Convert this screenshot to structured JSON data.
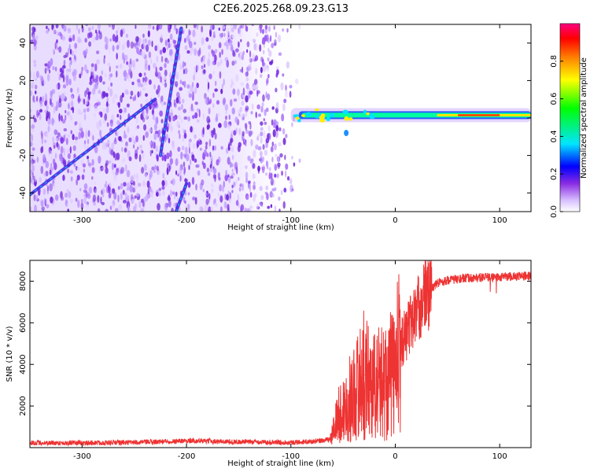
{
  "title": "C2E6.2025.268.09.23.G13",
  "chart_data": [
    {
      "type": "heatmap",
      "xlabel": "Height of straight line (km)",
      "ylabel": "Frequency (Hz)",
      "xlim": [
        -350,
        130
      ],
      "ylim": [
        -50,
        50
      ],
      "x_ticks": [
        -300,
        -200,
        -100,
        0,
        100
      ],
      "y_ticks": [
        -40,
        -20,
        0,
        20,
        40
      ],
      "colorbar": {
        "label": "Normalized spectral amplitude",
        "range": [
          0,
          1
        ],
        "ticks": [
          0.0,
          0.2,
          0.4,
          0.6,
          0.8
        ],
        "colormap": [
          "#ffffff",
          "#d8bfff",
          "#8a2be2",
          "#0000ff",
          "#00e5ff",
          "#00ff00",
          "#ffff00",
          "#ff8000",
          "#ff0000",
          "#ff0080"
        ]
      },
      "noise_region_x": [
        -350,
        -90
      ],
      "signal_band": {
        "x": [
          -100,
          130
        ],
        "frequency": 1.5
      },
      "streaks": [
        {
          "x": [
            -350,
            -230
          ],
          "y": [
            -41,
            10
          ]
        },
        {
          "x": [
            -225,
            -205
          ],
          "y": [
            -20,
            48
          ]
        },
        {
          "x": [
            -210,
            -200
          ],
          "y": [
            -50,
            -35
          ]
        }
      ],
      "grid": false
    },
    {
      "type": "line",
      "xlabel": "Height of straight line (km)",
      "ylabel": "SNR (10 * v/v)",
      "xlim": [
        -350,
        130
      ],
      "ylim": [
        0,
        9000
      ],
      "x_ticks": [
        -300,
        -200,
        -100,
        0,
        100
      ],
      "y_ticks": [
        2000,
        4000,
        6000,
        8000
      ],
      "color": "#ee3333",
      "series_points": [
        [
          -350,
          230
        ],
        [
          -300,
          220
        ],
        [
          -250,
          250
        ],
        [
          -200,
          330
        ],
        [
          -150,
          280
        ],
        [
          -100,
          250
        ],
        [
          -75,
          300
        ],
        [
          -62,
          400
        ],
        [
          -55,
          1500
        ],
        [
          -50,
          1800
        ],
        [
          -40,
          2600
        ],
        [
          -30,
          3500
        ],
        [
          -20,
          3000
        ],
        [
          -10,
          3200
        ],
        [
          0,
          3700
        ],
        [
          5,
          5000
        ],
        [
          10,
          5500
        ],
        [
          20,
          6500
        ],
        [
          30,
          7400
        ],
        [
          40,
          7900
        ],
        [
          50,
          8050
        ],
        [
          70,
          8150
        ],
        [
          100,
          8200
        ],
        [
          130,
          8250
        ]
      ],
      "grid": false
    }
  ]
}
